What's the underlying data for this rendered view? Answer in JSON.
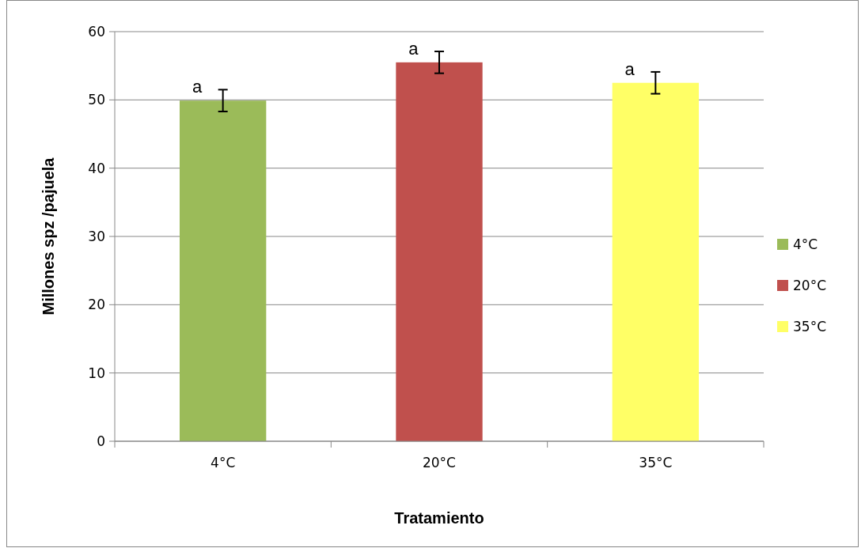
{
  "chart_data": {
    "type": "bar",
    "stacked": true,
    "xlabel": "Tratamiento",
    "ylabel": "Millones spz /pajuela",
    "categories": [
      "4°C",
      "20°C",
      "35°C"
    ],
    "series": [
      {
        "name": "4°C",
        "color": "#9bbb59",
        "values": [
          49.9,
          null,
          null
        ],
        "errors": [
          1.6,
          null,
          null
        ]
      },
      {
        "name": "20°C",
        "color": "#c0504d",
        "values": [
          null,
          55.5,
          null
        ],
        "errors": [
          null,
          1.6,
          null
        ]
      },
      {
        "name": "35°C",
        "color": "#ffff66",
        "values": [
          null,
          null,
          52.5
        ],
        "errors": [
          null,
          null,
          1.6
        ]
      }
    ],
    "ylim": [
      0,
      60
    ],
    "yticks": [
      0,
      10,
      20,
      30,
      40,
      50,
      60
    ],
    "grid": "y",
    "legend": "right",
    "annotations": [
      {
        "text": "a",
        "x": "4°C",
        "y": 49.9
      },
      {
        "text": "a",
        "x": "20°C",
        "y": 55.5
      },
      {
        "text": "a",
        "x": "35°C",
        "y": 52.5
      }
    ]
  }
}
